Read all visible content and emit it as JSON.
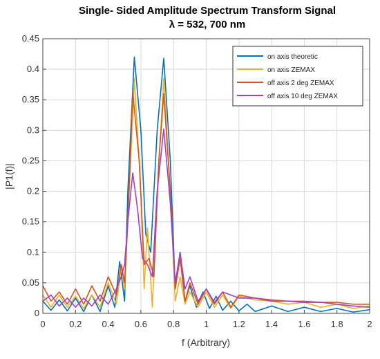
{
  "chart_data": {
    "type": "line",
    "title": "Single- Sided Amplitude Spectrum Transform Signal",
    "subtitle": "λ = 532, 700 nm",
    "xlabel": "f (Arbitrary)",
    "ylabel": "|P1(f)|",
    "xlim": [
      0,
      2
    ],
    "ylim": [
      0,
      0.45
    ],
    "xticks": [
      "0",
      "0.2",
      "0.4",
      "0.6",
      "0.8",
      "1",
      "1.2",
      "1.4",
      "1.6",
      "1.8",
      "2"
    ],
    "yticks": [
      "0",
      "0.05",
      "0.1",
      "0.15",
      "0.2",
      "0.25",
      "0.3",
      "0.35",
      "0.4",
      "0.45"
    ],
    "grid": true,
    "legend_position": "top-right",
    "series": [
      {
        "name": "on axis theoretic",
        "color": "#0072BD",
        "peaks": [
          0.42,
          0.418
        ],
        "points": [
          [
            0,
            0.02
          ],
          [
            0.05,
            0.005
          ],
          [
            0.1,
            0.022
          ],
          [
            0.15,
            0.004
          ],
          [
            0.2,
            0.025
          ],
          [
            0.25,
            0.003
          ],
          [
            0.3,
            0.03
          ],
          [
            0.35,
            0.003
          ],
          [
            0.4,
            0.045
          ],
          [
            0.44,
            0.01
          ],
          [
            0.47,
            0.085
          ],
          [
            0.5,
            0.02
          ],
          [
            0.52,
            0.2
          ],
          [
            0.56,
            0.42
          ],
          [
            0.6,
            0.3
          ],
          [
            0.63,
            0.13
          ],
          [
            0.66,
            0.1
          ],
          [
            0.7,
            0.3
          ],
          [
            0.74,
            0.418
          ],
          [
            0.78,
            0.25
          ],
          [
            0.81,
            0.04
          ],
          [
            0.84,
            0.1
          ],
          [
            0.87,
            0.02
          ],
          [
            0.9,
            0.045
          ],
          [
            0.94,
            0.01
          ],
          [
            0.98,
            0.035
          ],
          [
            1.02,
            0.008
          ],
          [
            1.06,
            0.028
          ],
          [
            1.1,
            0.005
          ],
          [
            1.15,
            0.02
          ],
          [
            1.2,
            0.004
          ],
          [
            1.25,
            0.015
          ],
          [
            1.3,
            0.003
          ],
          [
            1.4,
            0.012
          ],
          [
            1.5,
            0.003
          ],
          [
            1.6,
            0.01
          ],
          [
            1.7,
            0.003
          ],
          [
            1.8,
            0.008
          ],
          [
            1.9,
            0.002
          ],
          [
            2.0,
            0.006
          ]
        ]
      },
      {
        "name": "on axis ZEMAX",
        "color": "#EDB120",
        "peaks": [
          0.385,
          0.385
        ],
        "points": [
          [
            0,
            0.03
          ],
          [
            0.05,
            0.01
          ],
          [
            0.1,
            0.03
          ],
          [
            0.15,
            0.01
          ],
          [
            0.2,
            0.028
          ],
          [
            0.25,
            0.008
          ],
          [
            0.3,
            0.03
          ],
          [
            0.35,
            0.01
          ],
          [
            0.4,
            0.05
          ],
          [
            0.45,
            0.015
          ],
          [
            0.48,
            0.075
          ],
          [
            0.5,
            0.04
          ],
          [
            0.52,
            0.15
          ],
          [
            0.56,
            0.385
          ],
          [
            0.6,
            0.2
          ],
          [
            0.62,
            0.04
          ],
          [
            0.64,
            0.14
          ],
          [
            0.67,
            0.01
          ],
          [
            0.7,
            0.2
          ],
          [
            0.74,
            0.385
          ],
          [
            0.78,
            0.2
          ],
          [
            0.81,
            0.02
          ],
          [
            0.84,
            0.06
          ],
          [
            0.87,
            0.015
          ],
          [
            0.9,
            0.035
          ],
          [
            0.95,
            0.01
          ],
          [
            1.0,
            0.035
          ],
          [
            1.05,
            0.01
          ],
          [
            1.1,
            0.03
          ],
          [
            1.15,
            0.008
          ],
          [
            1.2,
            0.028
          ],
          [
            1.3,
            0.022
          ],
          [
            1.4,
            0.02
          ],
          [
            1.5,
            0.015
          ],
          [
            1.6,
            0.018
          ],
          [
            1.7,
            0.01
          ],
          [
            1.8,
            0.015
          ],
          [
            1.9,
            0.008
          ],
          [
            2.0,
            0.012
          ]
        ]
      },
      {
        "name": "off axis 2 deg ZEMAX",
        "color": "#D95319",
        "peaks": [
          0.362,
          0.36
        ],
        "points": [
          [
            0,
            0.045
          ],
          [
            0.05,
            0.02
          ],
          [
            0.1,
            0.035
          ],
          [
            0.15,
            0.015
          ],
          [
            0.2,
            0.04
          ],
          [
            0.25,
            0.015
          ],
          [
            0.3,
            0.045
          ],
          [
            0.35,
            0.02
          ],
          [
            0.4,
            0.06
          ],
          [
            0.45,
            0.03
          ],
          [
            0.48,
            0.08
          ],
          [
            0.5,
            0.05
          ],
          [
            0.52,
            0.15
          ],
          [
            0.55,
            0.362
          ],
          [
            0.59,
            0.25
          ],
          [
            0.62,
            0.08
          ],
          [
            0.65,
            0.09
          ],
          [
            0.68,
            0.06
          ],
          [
            0.71,
            0.25
          ],
          [
            0.74,
            0.36
          ],
          [
            0.78,
            0.2
          ],
          [
            0.81,
            0.04
          ],
          [
            0.84,
            0.09
          ],
          [
            0.87,
            0.02
          ],
          [
            0.9,
            0.05
          ],
          [
            0.95,
            0.015
          ],
          [
            1.0,
            0.04
          ],
          [
            1.05,
            0.015
          ],
          [
            1.1,
            0.035
          ],
          [
            1.15,
            0.01
          ],
          [
            1.2,
            0.03
          ],
          [
            1.3,
            0.025
          ],
          [
            1.4,
            0.022
          ],
          [
            1.5,
            0.02
          ],
          [
            1.6,
            0.02
          ],
          [
            1.7,
            0.018
          ],
          [
            1.8,
            0.018
          ],
          [
            1.9,
            0.015
          ],
          [
            2.0,
            0.015
          ]
        ]
      },
      {
        "name": "off axis 10 deg ZEMAX",
        "color": "#A03FCF",
        "peaks": [
          0.23,
          0.302
        ],
        "points": [
          [
            0,
            0.02
          ],
          [
            0.05,
            0.03
          ],
          [
            0.1,
            0.012
          ],
          [
            0.15,
            0.025
          ],
          [
            0.2,
            0.01
          ],
          [
            0.25,
            0.025
          ],
          [
            0.3,
            0.012
          ],
          [
            0.35,
            0.03
          ],
          [
            0.4,
            0.015
          ],
          [
            0.45,
            0.04
          ],
          [
            0.48,
            0.06
          ],
          [
            0.5,
            0.08
          ],
          [
            0.52,
            0.15
          ],
          [
            0.55,
            0.23
          ],
          [
            0.58,
            0.17
          ],
          [
            0.61,
            0.09
          ],
          [
            0.64,
            0.08
          ],
          [
            0.67,
            0.06
          ],
          [
            0.7,
            0.2
          ],
          [
            0.74,
            0.302
          ],
          [
            0.78,
            0.18
          ],
          [
            0.81,
            0.05
          ],
          [
            0.84,
            0.1
          ],
          [
            0.87,
            0.04
          ],
          [
            0.9,
            0.06
          ],
          [
            0.95,
            0.02
          ],
          [
            1.0,
            0.04
          ],
          [
            1.05,
            0.018
          ],
          [
            1.1,
            0.035
          ],
          [
            1.2,
            0.025
          ],
          [
            1.3,
            0.025
          ],
          [
            1.4,
            0.02
          ],
          [
            1.5,
            0.02
          ],
          [
            1.6,
            0.018
          ],
          [
            1.7,
            0.018
          ],
          [
            1.8,
            0.015
          ],
          [
            1.9,
            0.012
          ],
          [
            2.0,
            0.01
          ]
        ]
      }
    ]
  }
}
